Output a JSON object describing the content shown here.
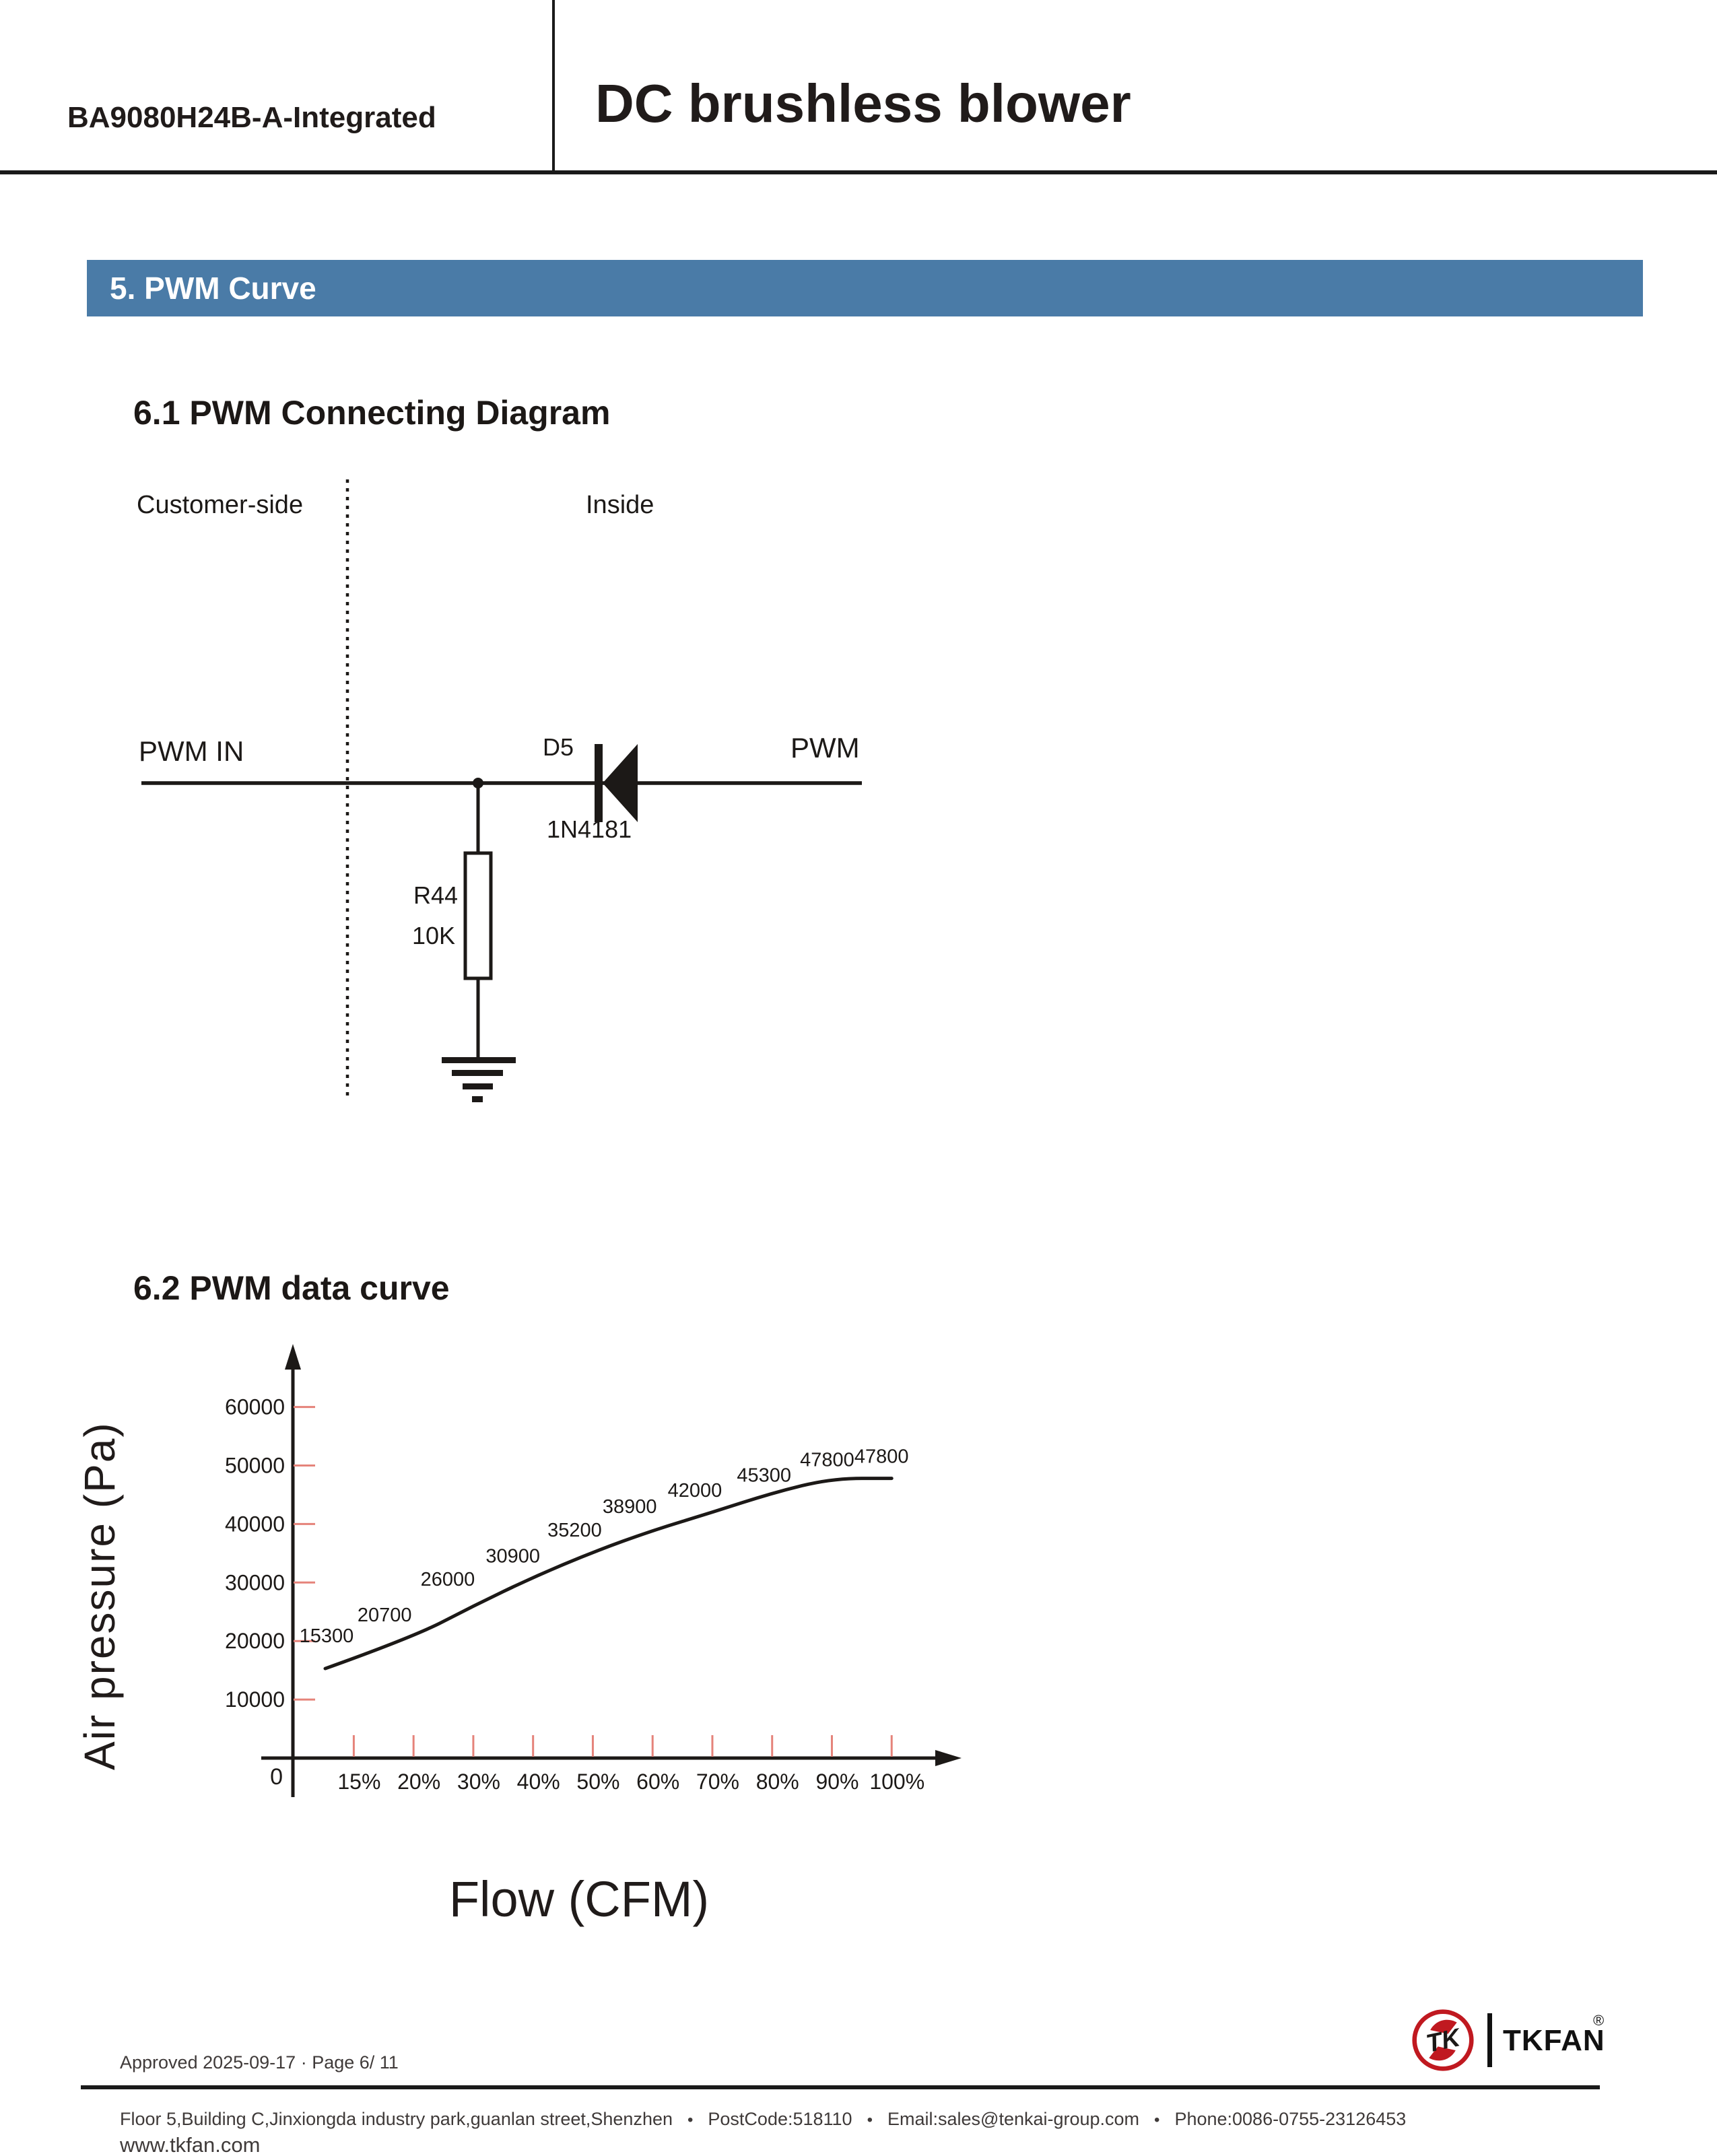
{
  "header": {
    "model": "BA9080H24B-A-Integrated",
    "title": "DC brushless blower"
  },
  "section_bar": {
    "label": "5. PWM Curve"
  },
  "subsection1": {
    "title": "6.1 PWM Connecting Diagram"
  },
  "diagram": {
    "left_zone_label": "Customer-side",
    "right_zone_label": "Inside",
    "input_label": "PWM IN",
    "output_label": "PWM",
    "diode_ref": "D5",
    "diode_part": "1N4181",
    "resistor_ref": "R44",
    "resistor_value": "10K"
  },
  "subsection2": {
    "title": "6.2 PWM data curve"
  },
  "chart_data": {
    "type": "line",
    "x": [
      "15%",
      "20%",
      "30%",
      "40%",
      "50%",
      "60%",
      "70%",
      "80%",
      "90%",
      "100%"
    ],
    "values": [
      15300,
      20700,
      26000,
      30900,
      35200,
      38900,
      42000,
      45300,
      47800,
      47800
    ],
    "point_labels": [
      "15300",
      "20700",
      "26000",
      "30900",
      "35200",
      "38900",
      "42000",
      "45300",
      "47800",
      "47800"
    ],
    "title": "",
    "xlabel": "Flow (CFM)",
    "ylabel": "Air pressure (Pa)",
    "y_ticks": [
      10000,
      20000,
      30000,
      40000,
      50000,
      60000
    ],
    "origin_label": "0",
    "ylim": [
      0,
      67000
    ],
    "grid": "off",
    "legend": "none",
    "tick_color": "#e5837a",
    "line_color": "#1c1917"
  },
  "footer": {
    "approved": "Approved 2025-09-17 · Page 6/ 11",
    "address": "Floor 5,Building C,Jinxiongda industry park,guanlan street,Shenzhen",
    "postcode": "PostCode:518110",
    "email": "Email:sales@tenkai-group.com",
    "phone": "Phone:0086-0755-23126453",
    "bullet": "•",
    "website": "www.tkfan.com",
    "brand": "TKFAN",
    "registered": "®",
    "brand_red": "#c01920"
  },
  "colors": {
    "accent_blue": "#4a7ba7",
    "tick_red": "#e5837a",
    "ink": "#1c1917"
  }
}
